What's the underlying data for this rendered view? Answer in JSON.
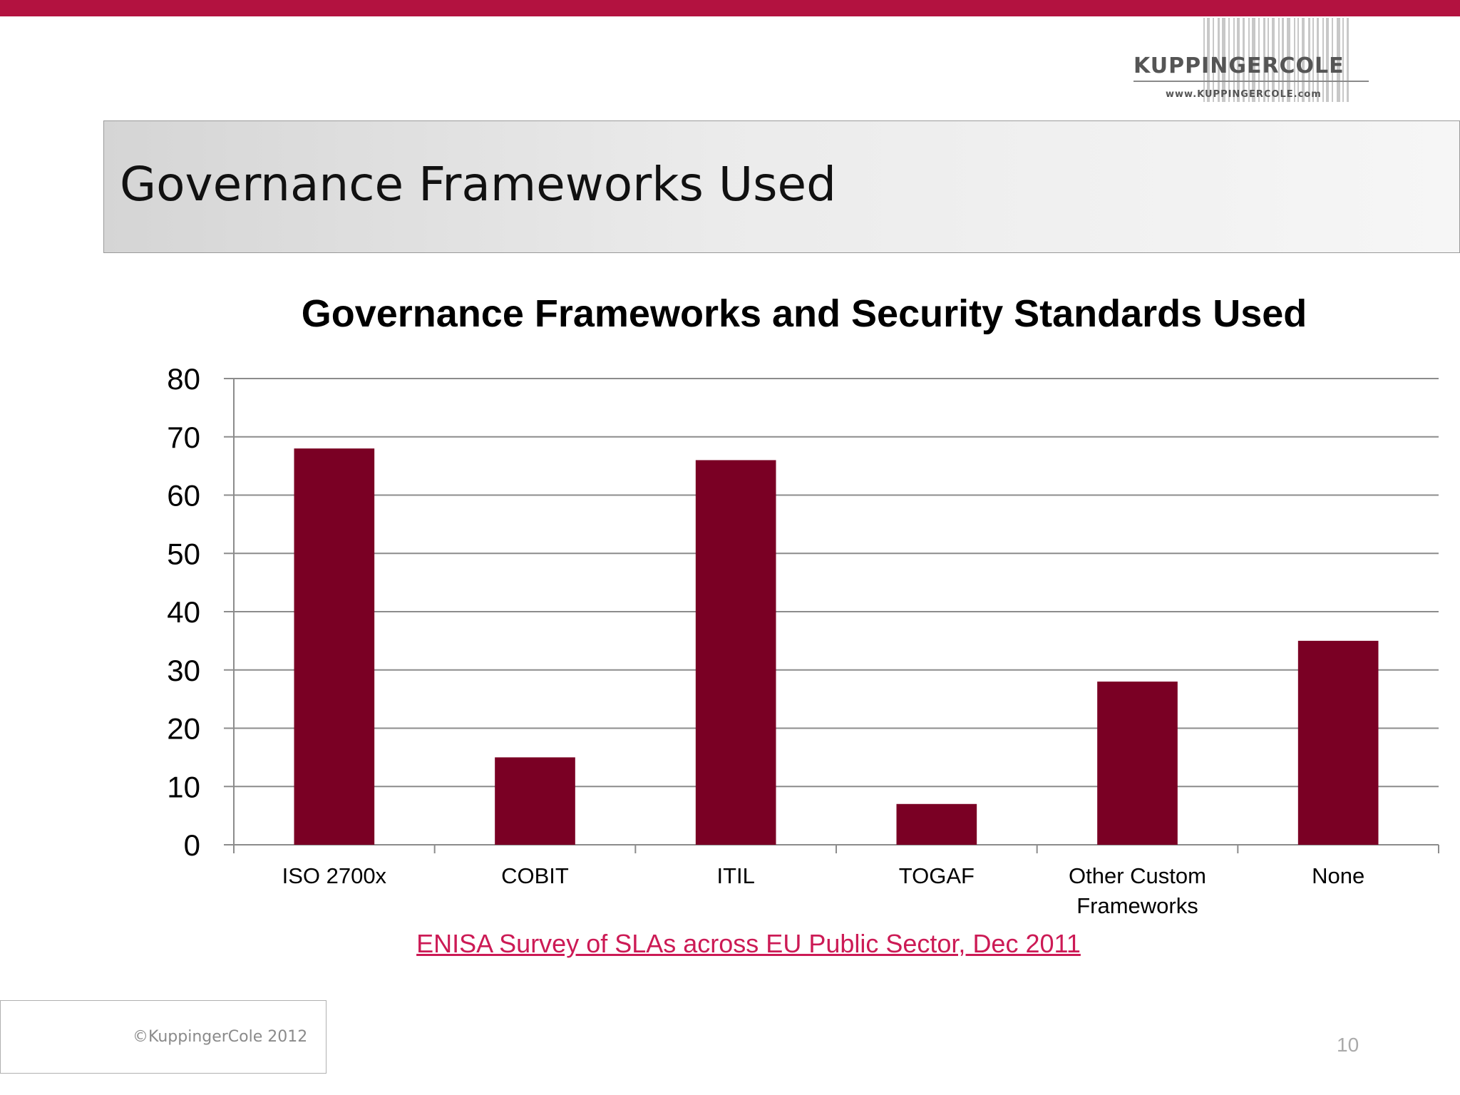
{
  "slide": {
    "title": "Governance Frameworks Used",
    "source": "ENISA Survey of SLAs across EU Public Sector, Dec 2011",
    "copyright": "©KuppingerCole 2012",
    "page_number": "10"
  },
  "brand": {
    "name": "KUPPINGERCOLE",
    "url": "www.KUPPINGERCOLE.com"
  },
  "colors": {
    "accent": "#b31240",
    "bar": "#7a0024",
    "link": "#cc1a55",
    "grid": "#8c8c8c"
  },
  "chart_data": {
    "type": "bar",
    "title": "Governance Frameworks and Security Standards Used",
    "categories": [
      [
        "ISO 2700x"
      ],
      [
        "COBIT"
      ],
      [
        "ITIL"
      ],
      [
        "TOGAF"
      ],
      [
        "Other Custom",
        "Frameworks"
      ],
      [
        "None"
      ]
    ],
    "values": [
      68,
      15,
      66,
      7,
      28,
      35
    ],
    "ylim": [
      0,
      80
    ],
    "yticks": [
      0,
      10,
      20,
      30,
      40,
      50,
      60,
      70,
      80
    ],
    "xlabel": "",
    "ylabel": "",
    "grid": true,
    "legend": "none"
  }
}
